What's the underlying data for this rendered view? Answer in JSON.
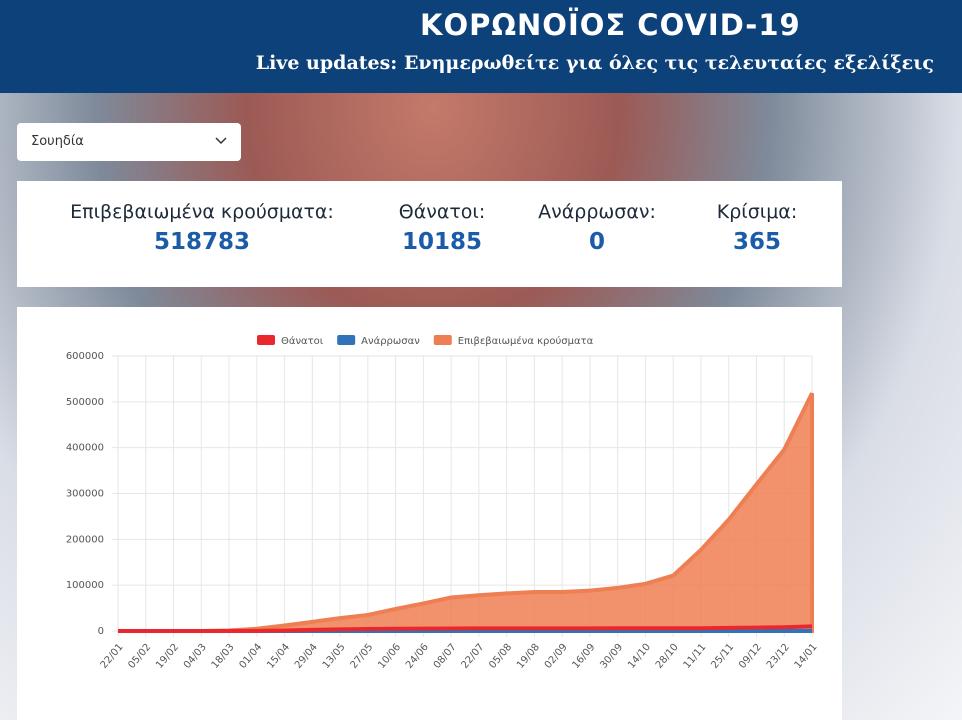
{
  "header": {
    "title": "ΚΟΡΩΝΟΪΟΣ COVID-19",
    "subtitle": "Live updates: Ενημερωθείτε για όλες τις τελευταίες εξελίξεις"
  },
  "dropdown": {
    "selected": "Σουηδία"
  },
  "stats": [
    {
      "label": "Επιβεβαιωμένα κρούσματα:",
      "value": "518783"
    },
    {
      "label": "Θάνατοι:",
      "value": "10185"
    },
    {
      "label": "Ανάρρωσαν:",
      "value": "0"
    },
    {
      "label": "Κρίσιμα:",
      "value": "365"
    }
  ],
  "chart_data": {
    "type": "line",
    "categories": [
      "22/01",
      "05/02",
      "19/02",
      "04/03",
      "18/03",
      "01/04",
      "15/04",
      "29/04",
      "13/05",
      "27/05",
      "10/06",
      "24/06",
      "08/07",
      "22/07",
      "05/08",
      "19/08",
      "02/09",
      "16/09",
      "30/09",
      "14/10",
      "28/10",
      "11/11",
      "25/11",
      "09/12",
      "23/12",
      "14/01"
    ],
    "series": [
      {
        "name": "Θάνατοι",
        "color": "#e8282e",
        "values": [
          0,
          0,
          0,
          0,
          10,
          300,
          1200,
          2400,
          3600,
          4300,
          5000,
          5300,
          5500,
          5700,
          5800,
          5800,
          5800,
          5800,
          5900,
          5900,
          6000,
          6100,
          6700,
          7500,
          8300,
          10185
        ]
      },
      {
        "name": "Ανάρρωσαν",
        "color": "#2f73b8",
        "values": [
          0,
          0,
          0,
          0,
          0,
          0,
          0,
          0,
          0,
          0,
          0,
          0,
          0,
          0,
          0,
          0,
          0,
          0,
          0,
          0,
          0,
          0,
          0,
          0,
          0,
          0
        ]
      },
      {
        "name": "Επιβεβαιωμένα κρούσματα",
        "color": "#ee7f52",
        "values": [
          0,
          0,
          0,
          100,
          1200,
          5000,
          12000,
          20000,
          28000,
          35000,
          48000,
          60000,
          73000,
          78000,
          82000,
          85000,
          85000,
          88000,
          94000,
          103000,
          121000,
          177000,
          243000,
          320000,
          396000,
          518783
        ]
      }
    ],
    "ylim": [
      0,
      600000
    ],
    "yticks": [
      0,
      100000,
      200000,
      300000,
      400000,
      500000,
      600000
    ],
    "grid": true
  }
}
